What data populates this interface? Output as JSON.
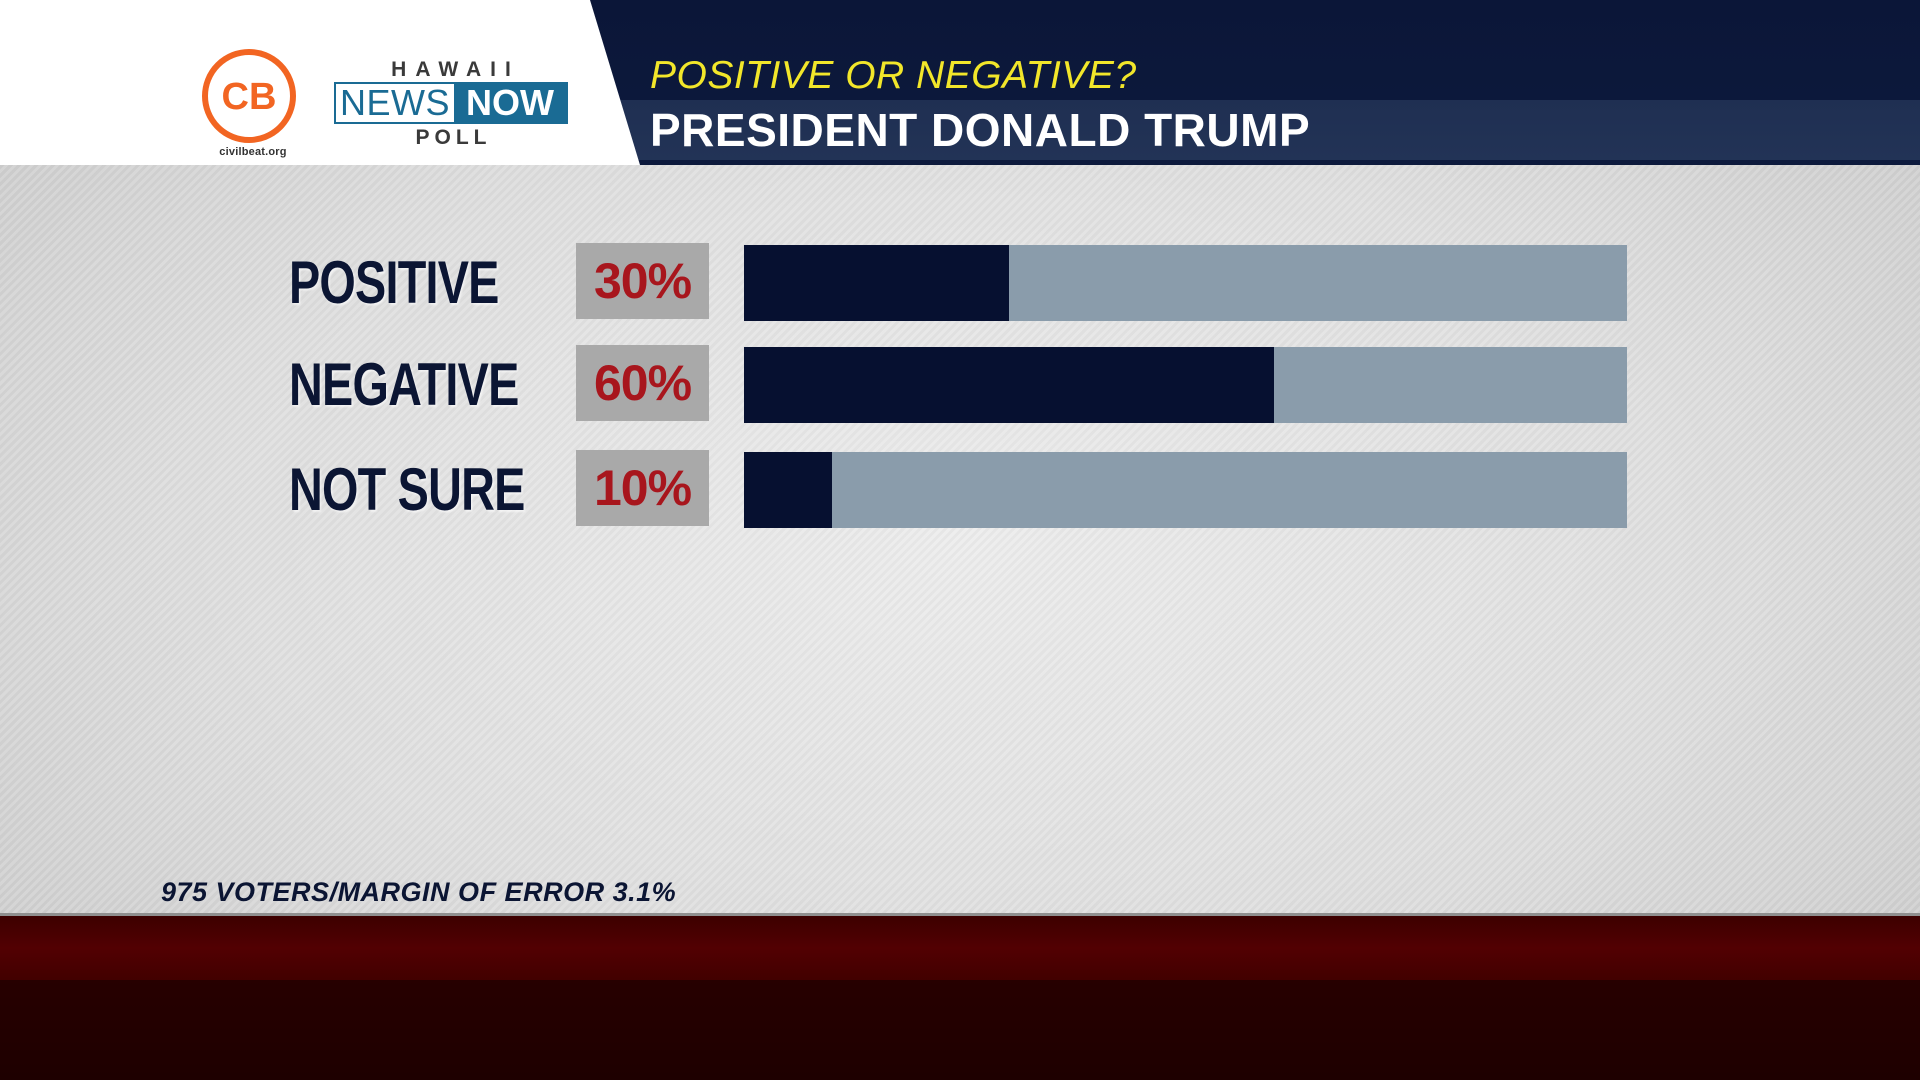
{
  "header": {
    "subtitle": "POSITIVE OR NEGATIVE?",
    "title": "PRESIDENT DONALD TRUMP"
  },
  "logos": {
    "cb_mark": "CB",
    "cb_url": "civilbeat.org",
    "hnn_top": "HAWAII",
    "hnn_news": "NEWS",
    "hnn_now": "NOW",
    "hnn_bottom": "POLL"
  },
  "chart_data": {
    "type": "bar",
    "orientation": "horizontal",
    "title": "PRESIDENT DONALD TRUMP",
    "subtitle": "POSITIVE OR NEGATIVE?",
    "categories": [
      "POSITIVE",
      "NEGATIVE",
      "NOT SURE"
    ],
    "values": [
      30,
      60,
      10
    ],
    "value_labels": [
      "30%",
      "60%",
      "10%"
    ],
    "xlim": [
      0,
      100
    ],
    "grid": false,
    "legend": "none"
  },
  "footnote": "975 VOTERS/MARGIN OF ERROR 3.1%",
  "colors": {
    "bar_fill": "#061030",
    "bar_track": "#8a9cab",
    "percent_text": "#a8161d",
    "subtitle_yellow": "#f2e62a",
    "header_navy": "#0b1638",
    "cb_orange": "#f26522",
    "hnn_blue": "#1a6b94",
    "bottom_band_red": "#520002"
  }
}
